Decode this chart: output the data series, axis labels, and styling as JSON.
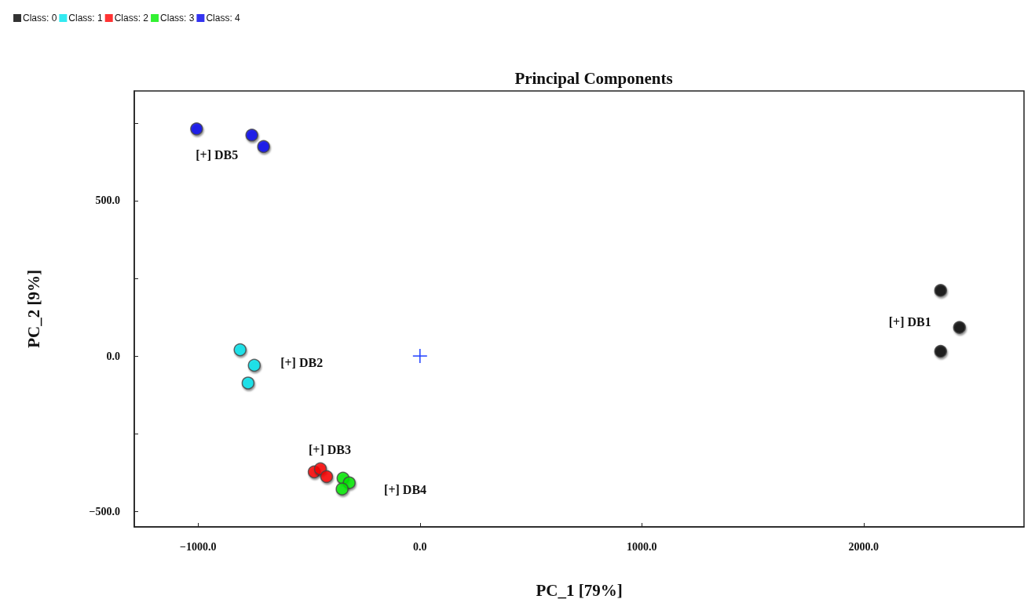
{
  "chart_data": {
    "type": "scatter",
    "title": "Principal Components",
    "xlabel": "PC_1 [79%]",
    "ylabel": "PC_2 [9%]",
    "series": [
      {
        "name": "Class: 0",
        "color": "#000000",
        "x": [
          2347,
          2432,
          2347
        ],
        "values": [
          211,
          92,
          15
        ]
      },
      {
        "name": "Class: 1",
        "color": "#00e5ee",
        "x": [
          -811,
          -747,
          -775
        ],
        "values": [
          20,
          -30,
          -87
        ]
      },
      {
        "name": "Class: 2",
        "color": "#ff0000",
        "x": [
          -477,
          -449,
          -421
        ],
        "values": [
          -373,
          -363,
          -388
        ]
      },
      {
        "name": "Class: 3",
        "color": "#00ee00",
        "x": [
          -347,
          -319,
          -351
        ],
        "values": [
          -393,
          -408,
          -428
        ]
      },
      {
        "name": "Class: 4",
        "color": "#0000ee",
        "x": [
          -1007,
          -758,
          -705
        ],
        "values": [
          731,
          711,
          674
        ]
      },
      {
        "color": "#1f3fff",
        "x": [
          0
        ],
        "values": [
          0
        ],
        "marker": "cross"
      }
    ],
    "xlim": [
      -1288,
      2723
    ],
    "xticks": [
      {
        "value": -1000,
        "label": "−1000.0"
      },
      {
        "value": 0,
        "label": "0.0"
      },
      {
        "value": 1000,
        "label": "1000.0"
      },
      {
        "value": 2000,
        "label": "2000.0"
      }
    ],
    "ylim": [
      -550,
      853
    ],
    "yticks": [
      {
        "value": -500,
        "label": "−500.0"
      },
      {
        "value": -250,
        "label": null
      },
      {
        "value": 0,
        "label": "0.0"
      },
      {
        "value": 250,
        "label": null
      },
      {
        "value": 500,
        "label": "500.0"
      },
      {
        "value": 750,
        "label": null
      }
    ],
    "annotations": [
      "[+] DB1",
      "[+] DB2",
      "[+] DB3",
      "[+] DB4",
      "[+] DB5"
    ],
    "marker": "circle",
    "grid": false,
    "legend": "top left"
  }
}
